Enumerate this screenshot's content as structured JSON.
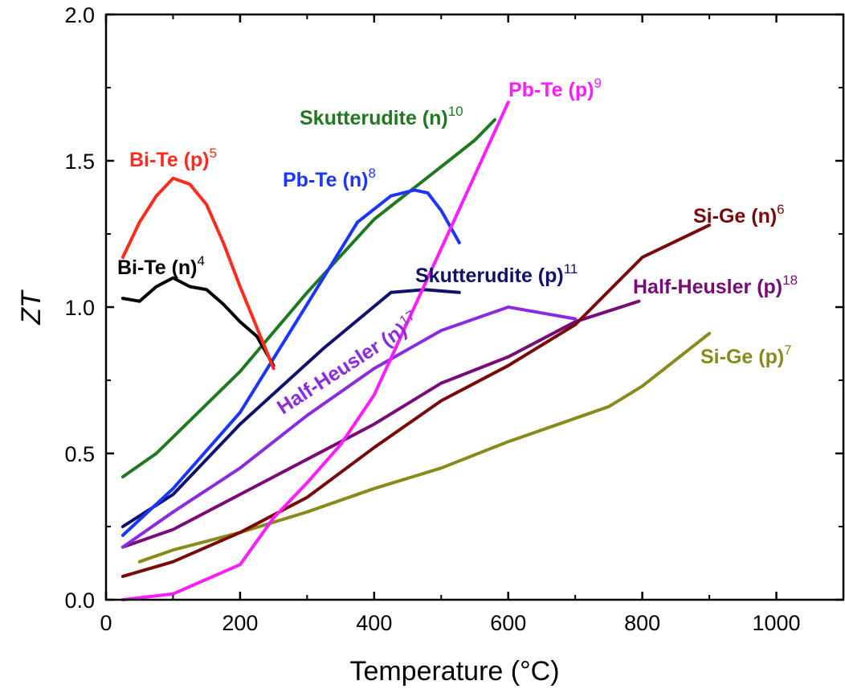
{
  "chart_data": {
    "type": "line",
    "title": "",
    "xlabel": "Temperature (°C)",
    "ylabel": "ZT",
    "xlim": [
      0,
      1100
    ],
    "ylim": [
      0,
      2.0
    ],
    "xticks": [
      0,
      200,
      400,
      600,
      800,
      1000
    ],
    "yticks": [
      0.0,
      0.5,
      1.0,
      1.5,
      2.0
    ],
    "xtick_labels": [
      "0",
      "200",
      "400",
      "600",
      "800",
      "1000"
    ],
    "ytick_labels": [
      "0.0",
      "0.5",
      "1.0",
      "1.5",
      "2.0"
    ],
    "grid": false,
    "series": [
      {
        "name": "Bi-Te (p)",
        "ref": "5",
        "color": "#ff2a1a",
        "x": [
          25,
          50,
          75,
          100,
          125,
          150,
          175,
          200,
          225,
          250
        ],
        "y": [
          1.17,
          1.29,
          1.38,
          1.44,
          1.42,
          1.35,
          1.22,
          1.07,
          0.93,
          0.79
        ]
      },
      {
        "name": "Bi-Te (n)",
        "ref": "4",
        "color": "#000000",
        "x": [
          25,
          50,
          75,
          100,
          125,
          150,
          175,
          200,
          225,
          250
        ],
        "y": [
          1.03,
          1.02,
          1.07,
          1.1,
          1.07,
          1.06,
          1.01,
          0.95,
          0.9,
          0.8
        ]
      },
      {
        "name": "Pb-Te (n)",
        "ref": "8",
        "color": "#1a35ff",
        "x": [
          25,
          100,
          200,
          300,
          375,
          425,
          460,
          480,
          500,
          527
        ],
        "y": [
          0.22,
          0.38,
          0.64,
          1.01,
          1.29,
          1.38,
          1.4,
          1.39,
          1.33,
          1.22
        ]
      },
      {
        "name": "Skutterudite (n)",
        "ref": "10",
        "color": "#1f7a1f",
        "x": [
          25,
          75,
          200,
          300,
          400,
          500,
          550,
          580
        ],
        "y": [
          0.42,
          0.5,
          0.78,
          1.05,
          1.3,
          1.48,
          1.57,
          1.64
        ]
      },
      {
        "name": "Pb-Te (p)",
        "ref": "9",
        "color": "#ff1aff",
        "x": [
          25,
          100,
          200,
          250,
          300,
          350,
          400,
          450,
          500,
          550,
          600
        ],
        "y": [
          0.0,
          0.02,
          0.12,
          0.28,
          0.4,
          0.53,
          0.7,
          0.95,
          1.2,
          1.45,
          1.7
        ]
      },
      {
        "name": "Skutterudite (p)",
        "ref": "11",
        "color": "#10106e",
        "x": [
          25,
          100,
          200,
          325,
          425,
          475,
          527
        ],
        "y": [
          0.25,
          0.36,
          0.6,
          0.86,
          1.05,
          1.06,
          1.05
        ]
      },
      {
        "name": "Half-Heusler (n)",
        "ref": "17",
        "color": "#8a2be2",
        "x": [
          25,
          100,
          200,
          300,
          400,
          500,
          600,
          700
        ],
        "y": [
          0.18,
          0.3,
          0.45,
          0.63,
          0.79,
          0.92,
          1.0,
          0.96
        ]
      },
      {
        "name": "Half-Heusler (p)",
        "ref": "18",
        "color": "#7a0a7a",
        "x": [
          25,
          100,
          200,
          300,
          400,
          500,
          600,
          700,
          795
        ],
        "y": [
          0.18,
          0.24,
          0.36,
          0.48,
          0.6,
          0.74,
          0.83,
          0.95,
          1.02
        ]
      },
      {
        "name": "Si-Ge (n)",
        "ref": "6",
        "color": "#7a0a0a",
        "x": [
          25,
          100,
          200,
          300,
          400,
          500,
          600,
          700,
          800,
          900
        ],
        "y": [
          0.08,
          0.13,
          0.23,
          0.35,
          0.52,
          0.68,
          0.8,
          0.94,
          1.17,
          1.28
        ]
      },
      {
        "name": "Si-Ge (p)",
        "ref": "7",
        "color": "#8a8a1a",
        "x": [
          50,
          100,
          200,
          300,
          400,
          500,
          600,
          700,
          750,
          800,
          900
        ],
        "y": [
          0.13,
          0.17,
          0.23,
          0.3,
          0.38,
          0.45,
          0.54,
          0.62,
          0.66,
          0.73,
          0.91
        ]
      }
    ],
    "annotations": [
      {
        "series": "Bi-Te (p)",
        "text": "Bi-Te (p)",
        "sup": "5"
      },
      {
        "series": "Bi-Te (n)",
        "text": "Bi-Te (n)",
        "sup": "4"
      },
      {
        "series": "Pb-Te (n)",
        "text": "Pb-Te (n)",
        "sup": "8"
      },
      {
        "series": "Skutterudite (n)",
        "text": "Skutterudite (n)",
        "sup": "10"
      },
      {
        "series": "Pb-Te (p)",
        "text": "Pb-Te (p)",
        "sup": "9"
      },
      {
        "series": "Skutterudite (p)",
        "text": "Skutterudite (p)",
        "sup": "11"
      },
      {
        "series": "Half-Heusler (n)",
        "text": "Half-Heusler (n)",
        "sup": "17"
      },
      {
        "series": "Half-Heusler (p)",
        "text": "Half-Heusler (p)",
        "sup": "18"
      },
      {
        "series": "Si-Ge (n)",
        "text": "Si-Ge (n)",
        "sup": "6"
      },
      {
        "series": "Si-Ge (p)",
        "text": "Si-Ge (p)",
        "sup": "7"
      }
    ]
  }
}
